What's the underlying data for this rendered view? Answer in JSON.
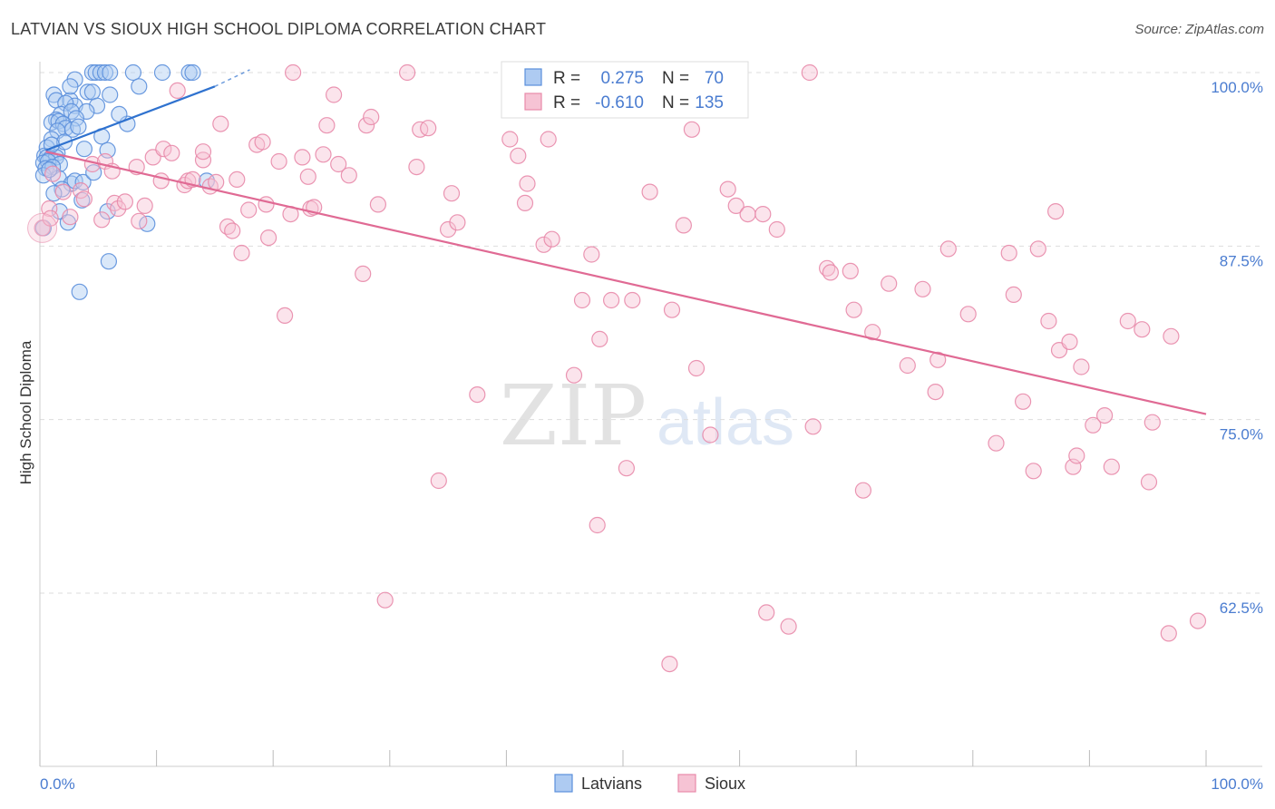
{
  "title": "LATVIAN VS SIOUX HIGH SCHOOL DIPLOMA CORRELATION CHART",
  "source": "Source: ZipAtlas.com",
  "watermark": {
    "zip": "ZIP",
    "atlas": "atlas"
  },
  "colors": {
    "latvians": "#5b8fdb",
    "latvians_fill": "#aecbf2",
    "latvians_line": "#2f72cf",
    "sioux": "#e88aaa",
    "sioux_fill": "#f6c3d4",
    "sioux_line": "#e06a94",
    "tick_blue": "#4a7cd0",
    "grid": "#dddddd"
  },
  "legend": {
    "rows": [
      {
        "series": "latvians",
        "r_label": "R =",
        "r_value": "0.275",
        "n_label": "N =",
        "n_value": "70"
      },
      {
        "series": "sioux",
        "r_label": "R =",
        "r_value": "-0.610",
        "n_label": "N =",
        "n_value": "135"
      }
    ]
  },
  "chart_data": {
    "type": "scatter",
    "title": "LATVIAN VS SIOUX HIGH SCHOOL DIPLOMA CORRELATION CHART",
    "xlabel": "",
    "ylabel": "High School Diploma",
    "xlim": [
      0,
      100
    ],
    "ylim": [
      50,
      101.5
    ],
    "x_tick_labels": {
      "left": "0.0%",
      "right": "100.0%"
    },
    "y_ticks": [
      {
        "value": 100,
        "label": "100.0%"
      },
      {
        "value": 87.5,
        "label": "87.5%"
      },
      {
        "value": 75,
        "label": "75.0%"
      },
      {
        "value": 62.5,
        "label": "62.5%"
      }
    ],
    "grid": "horizontal-dashed",
    "legend_position": "bottom-center",
    "series": [
      {
        "name": "Latvians",
        "key": "latvians",
        "trendline": {
          "x1": 0.5,
          "y1": 94.4,
          "x2": 15.0,
          "y2": 99.0,
          "dashed_to_x": 18.0,
          "dashed_to_y": 100.2
        },
        "points": [
          [
            4.5,
            100
          ],
          [
            4.8,
            100
          ],
          [
            5.2,
            100
          ],
          [
            5.6,
            100
          ],
          [
            6.0,
            100
          ],
          [
            8.0,
            100
          ],
          [
            10.5,
            100
          ],
          [
            12.8,
            100
          ],
          [
            13.1,
            100
          ],
          [
            3.0,
            99.5
          ],
          [
            8.5,
            99.0
          ],
          [
            4.1,
            98.6
          ],
          [
            1.2,
            98.4
          ],
          [
            4.5,
            98.6
          ],
          [
            6.0,
            98.4
          ],
          [
            1.4,
            98.0
          ],
          [
            2.6,
            98.0
          ],
          [
            3.0,
            97.6
          ],
          [
            2.2,
            97.8
          ],
          [
            4.9,
            97.6
          ],
          [
            4.0,
            97.2
          ],
          [
            1.8,
            97.0
          ],
          [
            2.7,
            97.2
          ],
          [
            1.4,
            96.6
          ],
          [
            3.1,
            96.7
          ],
          [
            1.0,
            96.4
          ],
          [
            1.6,
            96.5
          ],
          [
            2.0,
            96.3
          ],
          [
            2.2,
            96.0
          ],
          [
            7.5,
            96.3
          ],
          [
            1.5,
            95.8
          ],
          [
            2.8,
            95.9
          ],
          [
            5.3,
            95.4
          ],
          [
            1.0,
            95.2
          ],
          [
            0.6,
            94.6
          ],
          [
            3.8,
            94.5
          ],
          [
            5.8,
            94.4
          ],
          [
            1.5,
            94.2
          ],
          [
            0.4,
            94.0
          ],
          [
            0.6,
            93.9
          ],
          [
            0.9,
            93.8
          ],
          [
            1.4,
            93.9
          ],
          [
            0.3,
            93.5
          ],
          [
            0.7,
            93.6
          ],
          [
            1.7,
            93.4
          ],
          [
            0.5,
            93.1
          ],
          [
            1.1,
            93.2
          ],
          [
            0.3,
            92.6
          ],
          [
            1.6,
            92.4
          ],
          [
            2.7,
            92.0
          ],
          [
            3.0,
            92.2
          ],
          [
            3.7,
            92.1
          ],
          [
            14.3,
            92.2
          ],
          [
            1.9,
            91.6
          ],
          [
            1.2,
            91.3
          ],
          [
            3.6,
            90.8
          ],
          [
            1.7,
            90.0
          ],
          [
            5.8,
            90.0
          ],
          [
            2.4,
            89.2
          ],
          [
            9.2,
            89.1
          ],
          [
            5.9,
            86.4
          ],
          [
            3.4,
            84.2
          ],
          [
            0.3,
            88.8
          ],
          [
            0.8,
            93.0
          ],
          [
            2.1,
            95.0
          ],
          [
            4.6,
            92.8
          ],
          [
            1.0,
            94.8
          ],
          [
            3.3,
            96.1
          ],
          [
            2.6,
            99.0
          ],
          [
            6.8,
            97.0
          ]
        ]
      },
      {
        "name": "Sioux",
        "key": "sioux",
        "trendline": {
          "x1": 0.5,
          "y1": 94.3,
          "x2": 100.0,
          "y2": 75.4
        },
        "points": [
          [
            0.2,
            88.8
          ],
          [
            0.8,
            90.2
          ],
          [
            0.9,
            89.5
          ],
          [
            2.0,
            91.4
          ],
          [
            2.6,
            89.6
          ],
          [
            3.5,
            91.5
          ],
          [
            3.8,
            90.9
          ],
          [
            4.5,
            93.4
          ],
          [
            5.3,
            89.4
          ],
          [
            5.6,
            93.6
          ],
          [
            6.4,
            90.6
          ],
          [
            6.7,
            90.2
          ],
          [
            7.3,
            90.7
          ],
          [
            8.3,
            93.2
          ],
          [
            8.5,
            89.3
          ],
          [
            9.0,
            90.4
          ],
          [
            9.7,
            93.9
          ],
          [
            10.4,
            92.2
          ],
          [
            10.6,
            94.5
          ],
          [
            11.3,
            94.2
          ],
          [
            11.8,
            98.7
          ],
          [
            12.4,
            91.9
          ],
          [
            12.7,
            92.2
          ],
          [
            13.1,
            92.3
          ],
          [
            14.0,
            93.7
          ],
          [
            14.6,
            91.8
          ],
          [
            15.1,
            92.1
          ],
          [
            15.5,
            96.3
          ],
          [
            16.1,
            88.9
          ],
          [
            16.5,
            88.6
          ],
          [
            16.9,
            92.3
          ],
          [
            17.3,
            87.0
          ],
          [
            17.9,
            90.1
          ],
          [
            18.6,
            94.8
          ],
          [
            19.1,
            95.0
          ],
          [
            19.4,
            90.5
          ],
          [
            19.6,
            88.1
          ],
          [
            20.5,
            93.6
          ],
          [
            21.0,
            82.5
          ],
          [
            21.5,
            89.8
          ],
          [
            21.7,
            100
          ],
          [
            22.5,
            93.9
          ],
          [
            23.0,
            92.5
          ],
          [
            23.2,
            90.2
          ],
          [
            23.5,
            90.3
          ],
          [
            24.3,
            94.1
          ],
          [
            24.6,
            96.2
          ],
          [
            25.2,
            98.4
          ],
          [
            25.6,
            93.4
          ],
          [
            27.7,
            85.5
          ],
          [
            28.0,
            96.2
          ],
          [
            28.4,
            96.8
          ],
          [
            29.0,
            90.5
          ],
          [
            29.6,
            62.0
          ],
          [
            31.5,
            100
          ],
          [
            32.3,
            93.2
          ],
          [
            32.6,
            95.9
          ],
          [
            33.3,
            96.0
          ],
          [
            34.2,
            70.6
          ],
          [
            35.0,
            88.7
          ],
          [
            35.3,
            91.3
          ],
          [
            35.8,
            89.2
          ],
          [
            37.5,
            76.8
          ],
          [
            40.3,
            95.2
          ],
          [
            41.0,
            94.0
          ],
          [
            41.6,
            90.6
          ],
          [
            41.8,
            92.0
          ],
          [
            43.2,
            87.6
          ],
          [
            43.6,
            95.2
          ],
          [
            43.9,
            88.0
          ],
          [
            45.8,
            78.2
          ],
          [
            46.5,
            83.6
          ],
          [
            47.3,
            86.9
          ],
          [
            47.8,
            67.4
          ],
          [
            48.0,
            80.8
          ],
          [
            49.0,
            83.6
          ],
          [
            50.3,
            71.5
          ],
          [
            50.8,
            83.6
          ],
          [
            52.3,
            91.4
          ],
          [
            54.0,
            57.4
          ],
          [
            54.2,
            82.9
          ],
          [
            55.2,
            89.0
          ],
          [
            55.9,
            95.9
          ],
          [
            56.3,
            78.7
          ],
          [
            57.5,
            73.9
          ],
          [
            59.0,
            91.6
          ],
          [
            59.7,
            90.4
          ],
          [
            60.7,
            89.8
          ],
          [
            62.0,
            89.8
          ],
          [
            62.3,
            61.1
          ],
          [
            63.2,
            88.7
          ],
          [
            64.2,
            60.1
          ],
          [
            66.0,
            100
          ],
          [
            66.3,
            74.5
          ],
          [
            67.5,
            85.9
          ],
          [
            67.8,
            85.6
          ],
          [
            69.5,
            85.7
          ],
          [
            69.8,
            82.9
          ],
          [
            70.6,
            69.9
          ],
          [
            71.4,
            81.3
          ],
          [
            72.8,
            84.8
          ],
          [
            74.4,
            78.9
          ],
          [
            75.7,
            84.4
          ],
          [
            76.8,
            77.0
          ],
          [
            77.0,
            79.3
          ],
          [
            77.9,
            87.3
          ],
          [
            79.6,
            82.6
          ],
          [
            82.0,
            73.3
          ],
          [
            83.1,
            87.0
          ],
          [
            83.5,
            84.0
          ],
          [
            84.3,
            76.3
          ],
          [
            85.2,
            71.3
          ],
          [
            85.6,
            87.3
          ],
          [
            86.5,
            82.1
          ],
          [
            87.1,
            90.0
          ],
          [
            87.4,
            80.0
          ],
          [
            88.3,
            80.6
          ],
          [
            88.6,
            71.6
          ],
          [
            88.9,
            72.4
          ],
          [
            89.3,
            78.8
          ],
          [
            90.3,
            74.6
          ],
          [
            91.3,
            75.3
          ],
          [
            91.9,
            71.6
          ],
          [
            93.3,
            82.1
          ],
          [
            94.5,
            81.5
          ],
          [
            95.1,
            70.5
          ],
          [
            95.4,
            74.8
          ],
          [
            96.8,
            59.6
          ],
          [
            97.0,
            81.0
          ],
          [
            99.3,
            60.5
          ],
          [
            1.1,
            92.7
          ],
          [
            6.2,
            92.9
          ],
          [
            14.0,
            94.3
          ],
          [
            26.5,
            92.6
          ]
        ]
      }
    ]
  },
  "bottom_legend": [
    {
      "series": "latvians",
      "label": "Latvians"
    },
    {
      "series": "sioux",
      "label": "Sioux"
    }
  ]
}
